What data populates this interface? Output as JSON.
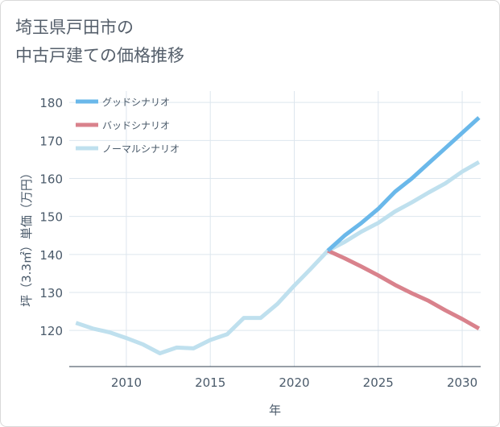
{
  "title_line1": "埼玉県戸田市の",
  "title_line2": "中古戸建ての価格推移",
  "chart_data": {
    "type": "line",
    "xlabel": "年",
    "ylabel": "坪（3.3㎡）単価（万円）",
    "xlim": [
      2006.6,
      2031.1
    ],
    "ylim": [
      110.5,
      183
    ],
    "xticks": [
      2010,
      2015,
      2020,
      2025,
      2030
    ],
    "yticks": [
      120,
      130,
      140,
      150,
      160,
      170,
      180
    ],
    "grid": true,
    "legend_position": "top-left",
    "series": [
      {
        "name": "グッドシナリオ",
        "color": "#6ab8ea",
        "x": [
          2022,
          2023,
          2024,
          2025,
          2026,
          2027,
          2028,
          2029,
          2030,
          2031
        ],
        "y": [
          141,
          145,
          148.3,
          152,
          156.5,
          160,
          164,
          168,
          172,
          176
        ]
      },
      {
        "name": "バッドシナリオ",
        "color": "#d9828c",
        "x": [
          2022,
          2023,
          2024,
          2025,
          2026,
          2027,
          2028,
          2029,
          2030,
          2031
        ],
        "y": [
          141,
          139,
          136.8,
          134.5,
          132,
          129.8,
          127.8,
          125.3,
          123,
          120.5
        ]
      },
      {
        "name": "ノーマルシナリオ",
        "color": "#bfe0ee",
        "x": [
          2007,
          2008,
          2009,
          2010,
          2011,
          2012,
          2013,
          2014,
          2015,
          2016,
          2017,
          2018,
          2019,
          2020,
          2021,
          2022,
          2023,
          2024,
          2025,
          2026,
          2027,
          2028,
          2029,
          2030,
          2031
        ],
        "y": [
          122,
          120.5,
          119.5,
          118,
          116.3,
          114,
          115.5,
          115.3,
          117.5,
          119,
          123.3,
          123.3,
          127,
          131.8,
          136.3,
          141,
          143.3,
          146,
          148.3,
          151.3,
          153.7,
          156.3,
          158.7,
          161.8,
          164.3
        ]
      }
    ]
  }
}
